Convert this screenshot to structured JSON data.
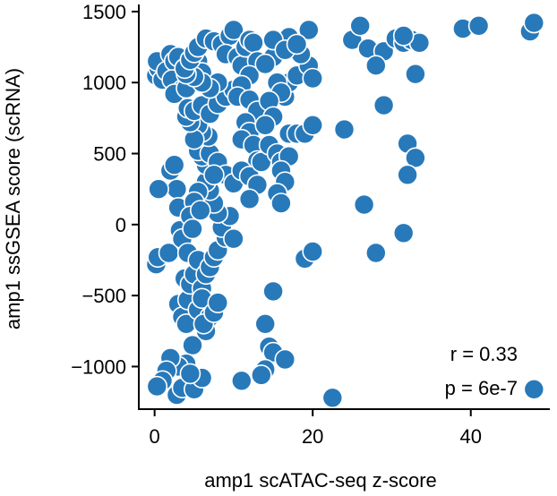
{
  "chart_data": {
    "type": "scatter",
    "title": "",
    "xlabel": "amp1 scATAC-seq z-score",
    "ylabel": "amp1 ssGSEA score (scRNA)",
    "xlim": [
      -2,
      50
    ],
    "ylim": [
      -1300,
      1550
    ],
    "xticks": [
      0,
      20,
      40
    ],
    "xtick_labels": [
      "0",
      "20",
      "40"
    ],
    "yticks": [
      -1000,
      -500,
      0,
      500,
      1000,
      1500
    ],
    "ytick_labels": [
      "−1000",
      "−500",
      "0",
      "500",
      "1000",
      "1500"
    ],
    "grid": false,
    "point_color": "#2879b9",
    "annotations": [
      "r = 0.33",
      "p = 6e-7"
    ],
    "points": [
      [
        0.2,
        1050
      ],
      [
        0.5,
        1100
      ],
      [
        0.3,
        1150
      ],
      [
        1.0,
        1020
      ],
      [
        1.5,
        1080
      ],
      [
        2.0,
        1200
      ],
      [
        2.5,
        1150
      ],
      [
        3.0,
        1180
      ],
      [
        2.2,
        1020
      ],
      [
        3.8,
        1100
      ],
      [
        4.2,
        1120
      ],
      [
        5.0,
        1080
      ],
      [
        5.5,
        1150
      ],
      [
        6.0,
        1070
      ],
      [
        4.5,
        1000
      ],
      [
        3.5,
        950
      ],
      [
        2.5,
        920
      ],
      [
        4.0,
        960
      ],
      [
        0.2,
        -280
      ],
      [
        0.4,
        -230
      ],
      [
        1.8,
        -200
      ],
      [
        2.0,
        380
      ],
      [
        2.5,
        420
      ],
      [
        2.8,
        250
      ],
      [
        0.5,
        250
      ],
      [
        3.0,
        120
      ],
      [
        3.2,
        -40
      ],
      [
        3.5,
        -100
      ],
      [
        3.0,
        -560
      ],
      [
        3.8,
        -660
      ],
      [
        3.5,
        -650
      ],
      [
        4.0,
        -700
      ],
      [
        4.2,
        -530
      ],
      [
        3.8,
        -380
      ],
      [
        4.5,
        -420
      ],
      [
        5.0,
        -350
      ],
      [
        4.2,
        -200
      ],
      [
        5.5,
        -250
      ],
      [
        6.0,
        -450
      ],
      [
        6.5,
        -350
      ],
      [
        5.5,
        -600
      ],
      [
        6.0,
        -520
      ],
      [
        4.8,
        -850
      ],
      [
        6.5,
        -750
      ],
      [
        7.0,
        -650
      ],
      [
        6.2,
        -700
      ],
      [
        7.5,
        -620
      ],
      [
        8.0,
        -550
      ],
      [
        7.0,
        -300
      ],
      [
        7.5,
        -230
      ],
      [
        8.0,
        -180
      ],
      [
        9.0,
        -90
      ],
      [
        8.5,
        -20
      ],
      [
        10.0,
        -100
      ],
      [
        9.5,
        60
      ],
      [
        8.0,
        80
      ],
      [
        7.5,
        150
      ],
      [
        7.0,
        240
      ],
      [
        6.5,
        300
      ],
      [
        5.5,
        230
      ],
      [
        5.0,
        160
      ],
      [
        4.5,
        60
      ],
      [
        4.8,
        -30
      ],
      [
        5.8,
        100
      ],
      [
        6.5,
        420
      ],
      [
        6.0,
        480
      ],
      [
        5.5,
        520
      ],
      [
        7.0,
        500
      ],
      [
        8.0,
        440
      ],
      [
        9.0,
        350
      ],
      [
        10.0,
        290
      ],
      [
        7.5,
        350
      ],
      [
        6.8,
        620
      ],
      [
        6.0,
        650
      ],
      [
        5.5,
        700
      ],
      [
        5.0,
        600
      ],
      [
        4.5,
        720
      ],
      [
        4.0,
        760
      ],
      [
        4.2,
        820
      ],
      [
        5.0,
        800
      ],
      [
        6.0,
        840
      ],
      [
        7.0,
        780
      ],
      [
        8.0,
        850
      ],
      [
        9.0,
        900
      ],
      [
        10.0,
        950
      ],
      [
        8.0,
        1000
      ],
      [
        7.0,
        960
      ],
      [
        6.0,
        1000
      ],
      [
        5.0,
        1040
      ],
      [
        4.0,
        1060
      ],
      [
        3.8,
        1100
      ],
      [
        4.5,
        1160
      ],
      [
        5.0,
        1210
      ],
      [
        5.5,
        1250
      ],
      [
        6.5,
        1310
      ],
      [
        7.5,
        1290
      ],
      [
        8.5,
        1270
      ],
      [
        9.5,
        1330
      ],
      [
        10.0,
        1370
      ],
      [
        9.0,
        1200
      ],
      [
        10.5,
        1180
      ],
      [
        11.0,
        1120
      ],
      [
        11.5,
        1250
      ],
      [
        12.0,
        1300
      ],
      [
        12.5,
        1280
      ],
      [
        13.0,
        1150
      ],
      [
        12.0,
        1050
      ],
      [
        11.0,
        980
      ],
      [
        10.5,
        900
      ],
      [
        12.0,
        880
      ],
      [
        13.0,
        800
      ],
      [
        11.5,
        720
      ],
      [
        12.0,
        650
      ],
      [
        11.0,
        600
      ],
      [
        12.5,
        560
      ],
      [
        13.0,
        450
      ],
      [
        11.0,
        380
      ],
      [
        12.0,
        340
      ],
      [
        13.0,
        280
      ],
      [
        12.0,
        180
      ],
      [
        13.5,
        440
      ],
      [
        14.5,
        560
      ],
      [
        15.5,
        500
      ],
      [
        16.0,
        440
      ],
      [
        17.0,
        480
      ],
      [
        16.0,
        380
      ],
      [
        16.5,
        300
      ],
      [
        15.5,
        220
      ],
      [
        16.0,
        150
      ],
      [
        17.0,
        640
      ],
      [
        18.0,
        640
      ],
      [
        19.0,
        640
      ],
      [
        20.0,
        700
      ],
      [
        16.5,
        900
      ],
      [
        17.0,
        1000
      ],
      [
        18.0,
        1050
      ],
      [
        19.5,
        1120
      ],
      [
        20.0,
        1030
      ],
      [
        18.5,
        1200
      ],
      [
        19.5,
        1370
      ],
      [
        17.0,
        1320
      ],
      [
        15.0,
        1180
      ],
      [
        14.0,
        1130
      ],
      [
        15.5,
        1000
      ],
      [
        16.0,
        930
      ],
      [
        14.5,
        870
      ],
      [
        15.0,
        760
      ],
      [
        14.0,
        700
      ],
      [
        15.0,
        1300
      ],
      [
        16.5,
        1230
      ],
      [
        18.0,
        1270
      ],
      [
        24.0,
        670
      ],
      [
        26.5,
        140
      ],
      [
        28.0,
        -200
      ],
      [
        19.0,
        -240
      ],
      [
        20.0,
        -190
      ],
      [
        15.0,
        -470
      ],
      [
        14.0,
        -700
      ],
      [
        14.5,
        -860
      ],
      [
        15.0,
        -900
      ],
      [
        16.5,
        -950
      ],
      [
        14.0,
        -1020
      ],
      [
        13.5,
        -1060
      ],
      [
        11.0,
        -1100
      ],
      [
        22.5,
        -1220
      ],
      [
        4.0,
        -980
      ],
      [
        3.0,
        -1000
      ],
      [
        2.0,
        -940
      ],
      [
        1.5,
        -1030
      ],
      [
        1.0,
        -1100
      ],
      [
        0.3,
        -1140
      ],
      [
        2.8,
        -1200
      ],
      [
        3.5,
        -1150
      ],
      [
        5.0,
        -1160
      ],
      [
        6.0,
        -1080
      ],
      [
        4.5,
        -1050
      ],
      [
        25.0,
        1300
      ],
      [
        26.0,
        1400
      ],
      [
        27.0,
        1240
      ],
      [
        29.0,
        1220
      ],
      [
        30.5,
        1310
      ],
      [
        31.5,
        1280
      ],
      [
        32.5,
        1300
      ],
      [
        33.5,
        1280
      ],
      [
        28.0,
        1120
      ],
      [
        33.0,
        1060
      ],
      [
        31.5,
        1330
      ],
      [
        29.0,
        840
      ],
      [
        32.0,
        570
      ],
      [
        33.0,
        470
      ],
      [
        32.0,
        350
      ],
      [
        31.5,
        -60
      ],
      [
        39.0,
        1380
      ],
      [
        41.0,
        1400
      ],
      [
        47.5,
        1360
      ],
      [
        48.0,
        1420
      ],
      [
        48.0,
        -1160
      ]
    ]
  }
}
